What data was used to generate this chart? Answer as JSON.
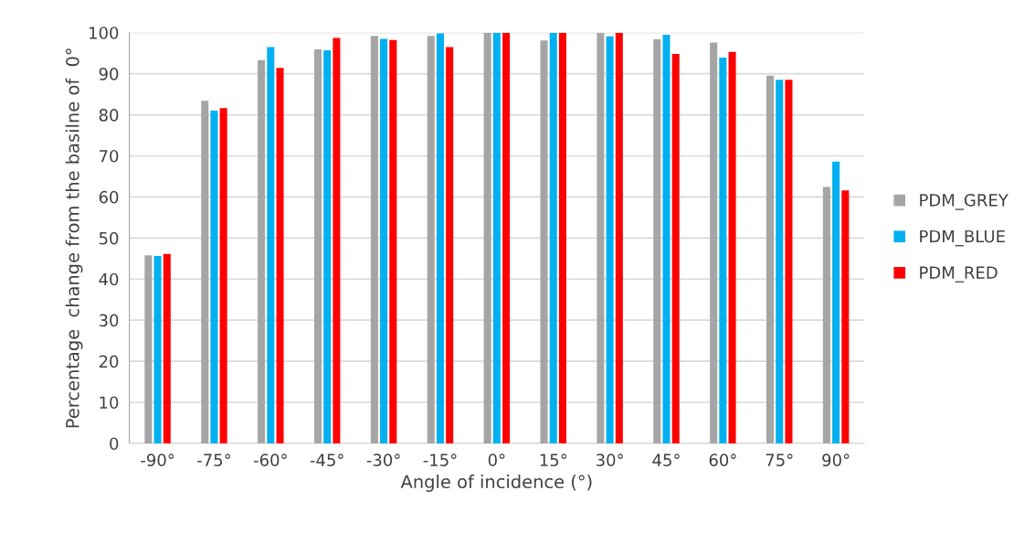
{
  "chart_data": {
    "type": "bar",
    "xlabel": "Angle of incidence (°)",
    "ylabel": "Percentage  change from the basilne of  0°",
    "categories": [
      "-90°",
      "-75°",
      "-60°",
      "-45°",
      "-30°",
      "-15°",
      "0°",
      "15°",
      "30°",
      "45°",
      "60°",
      "75°",
      "90°"
    ],
    "series": [
      {
        "name": "PDM_GREY",
        "color": "#a5a5a5",
        "values": [
          45.8,
          83.4,
          93.3,
          95.9,
          99.2,
          99.2,
          100,
          98.1,
          100,
          98.4,
          97.6,
          89.5,
          62.4
        ]
      },
      {
        "name": "PDM_BLUE",
        "color": "#00b0f0",
        "values": [
          45.6,
          81.0,
          96.5,
          95.7,
          98.5,
          99.8,
          100,
          100,
          99.1,
          99.5,
          93.9,
          88.5,
          68.6
        ]
      },
      {
        "name": "PDM_RED",
        "color": "#ff0000",
        "values": [
          46.1,
          81.6,
          91.4,
          98.7,
          98.2,
          96.5,
          100,
          100,
          100,
          94.8,
          95.3,
          88.5,
          61.6
        ]
      }
    ],
    "ylim": [
      0,
      100
    ],
    "yticks": [
      0,
      10,
      20,
      30,
      40,
      50,
      60,
      70,
      80,
      90,
      100
    ],
    "grid": "y",
    "legend": "right"
  }
}
